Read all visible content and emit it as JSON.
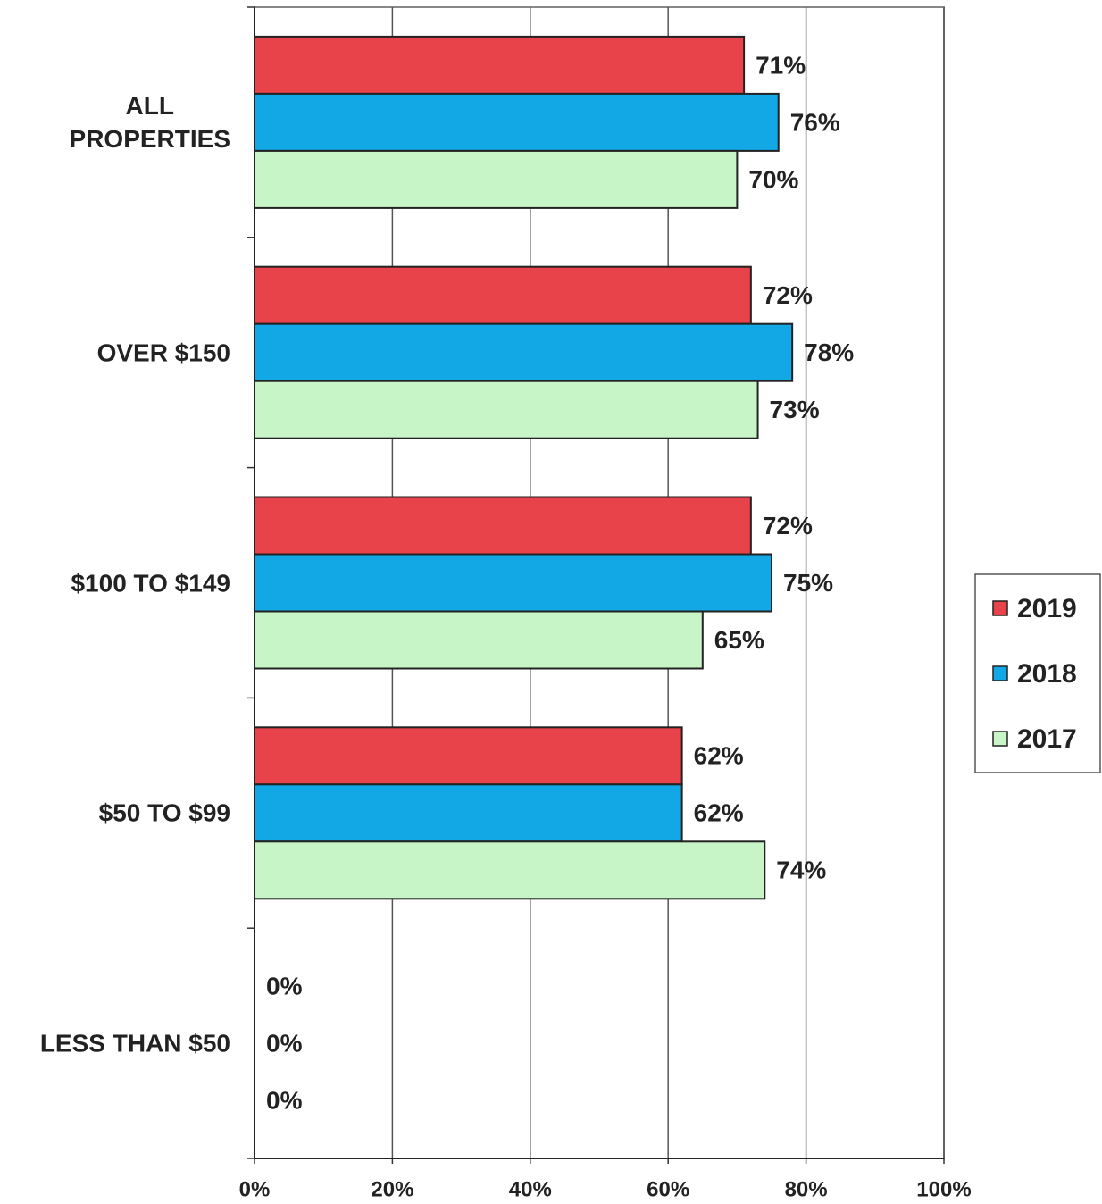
{
  "chart_data": {
    "type": "hbar",
    "categories": [
      "ALL\nPROPERTIES",
      "OVER $150",
      "$100 TO $149",
      "$50 TO $99",
      "LESS THAN $50"
    ],
    "series": [
      {
        "name": "2019",
        "color": "#e8434a",
        "values": [
          71,
          72,
          72,
          62,
          0
        ],
        "value_labels": [
          "71%",
          "72%",
          "72%",
          "62%",
          "0%"
        ]
      },
      {
        "name": "2018",
        "color": "#12a8e6",
        "values": [
          76,
          78,
          75,
          62,
          0
        ],
        "value_labels": [
          "76%",
          "78%",
          "75%",
          "62%",
          "0%"
        ]
      },
      {
        "name": "2017",
        "color": "#c8f5c8",
        "values": [
          70,
          73,
          65,
          74,
          0
        ],
        "value_labels": [
          "70%",
          "73%",
          "65%",
          "74%",
          "0%"
        ]
      }
    ],
    "xlim": [
      0,
      100
    ],
    "xticks": [
      {
        "value": 0,
        "label": "0%"
      },
      {
        "value": 20,
        "label": "20%"
      },
      {
        "value": 40,
        "label": "40%"
      },
      {
        "value": 60,
        "label": "60%"
      },
      {
        "value": 80,
        "label": "80%"
      },
      {
        "value": 100,
        "label": "100%"
      }
    ],
    "grid": true,
    "legend": "right"
  }
}
